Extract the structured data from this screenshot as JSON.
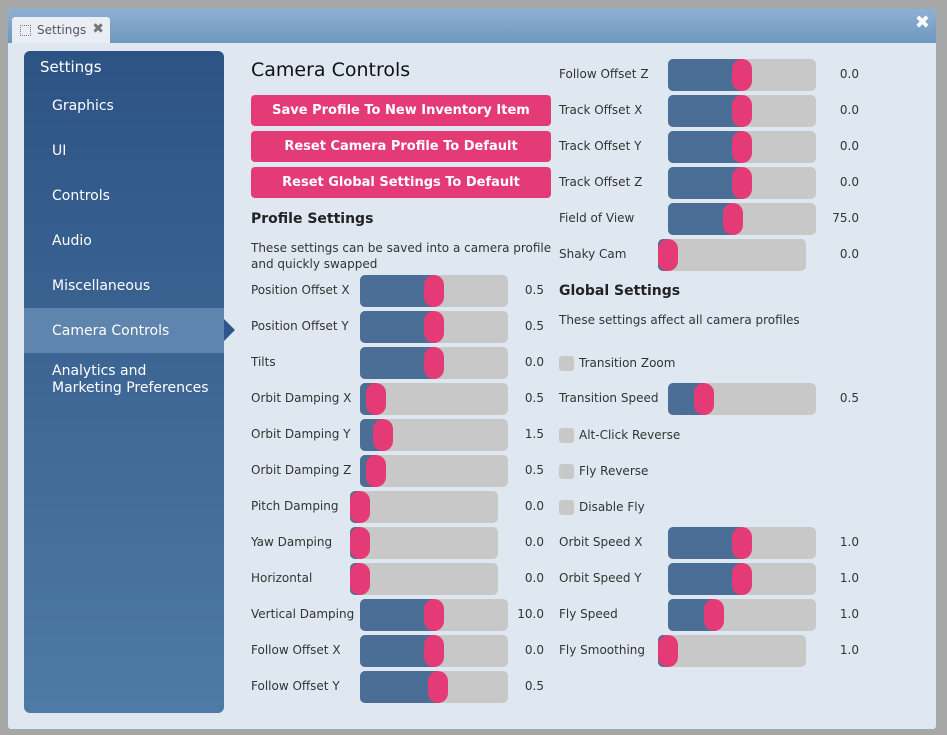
{
  "window": {
    "tab_label": "Settings",
    "tab_icon": "dashed-square-icon",
    "tab_close_glyph": "✖",
    "close_glyph": "✖"
  },
  "sidebar": {
    "title": "Settings",
    "items": [
      {
        "label": "Graphics",
        "active": false
      },
      {
        "label": "UI",
        "active": false
      },
      {
        "label": "Controls",
        "active": false
      },
      {
        "label": "Audio",
        "active": false
      },
      {
        "label": "Miscellaneous",
        "active": false
      },
      {
        "label": "Camera Controls",
        "active": true
      },
      {
        "label": "Analytics and Marketing Preferences",
        "active": false
      }
    ]
  },
  "main": {
    "title": "Camera Controls",
    "buttons": {
      "save_profile": "Save Profile To New Inventory Item",
      "reset_camera": "Reset Camera Profile To Default",
      "reset_global": "Reset Global Settings To Default"
    },
    "profile": {
      "heading": "Profile Settings",
      "description": "These settings can be saved into a camera profile and quickly swapped",
      "sliders": [
        {
          "label": "Position Offset X",
          "value": "0.5",
          "fraction": 0.5
        },
        {
          "label": "Position Offset Y",
          "value": "0.5",
          "fraction": 0.5
        },
        {
          "label": "Tilts",
          "value": "0.0",
          "fraction": 0.5
        },
        {
          "label": "Orbit Damping X",
          "value": "0.5",
          "fraction": 0.05
        },
        {
          "label": "Orbit Damping Y",
          "value": "1.5",
          "fraction": 0.1
        },
        {
          "label": "Orbit Damping Z",
          "value": "0.5",
          "fraction": 0.05
        },
        {
          "label": "Pitch Damping",
          "value": "0.0",
          "fraction": 0.0
        },
        {
          "label": "Yaw Damping",
          "value": "0.0",
          "fraction": 0.0
        },
        {
          "label": "Horizontal",
          "value": "0.0",
          "fraction": 0.0
        },
        {
          "label": "Vertical Damping",
          "value": "10.0",
          "fraction": 0.5
        },
        {
          "label": "Follow Offset X",
          "value": "0.0",
          "fraction": 0.5
        },
        {
          "label": "Follow Offset Y",
          "value": "0.5",
          "fraction": 0.53
        }
      ]
    },
    "profile_right": {
      "sliders": [
        {
          "label": "Follow Offset Z",
          "value": "0.0",
          "fraction": 0.5
        },
        {
          "label": "Track Offset X",
          "value": "0.0",
          "fraction": 0.5
        },
        {
          "label": "Track Offset Y",
          "value": "0.0",
          "fraction": 0.5
        },
        {
          "label": "Track Offset Z",
          "value": "0.0",
          "fraction": 0.5
        },
        {
          "label": "Field of View",
          "value": "75.0",
          "fraction": 0.43
        },
        {
          "label": "Shaky Cam",
          "value": "0.0",
          "fraction": 0.0
        }
      ]
    },
    "global": {
      "heading": "Global Settings",
      "description": "These settings affect all camera profiles",
      "transition_zoom": {
        "label": "Transition Zoom",
        "checked": false
      },
      "transition_speed": {
        "label": "Transition Speed",
        "value": "0.5",
        "fraction": 0.2
      },
      "alt_click_reverse": {
        "label": "Alt-Click Reverse",
        "checked": false
      },
      "fly_reverse": {
        "label": "Fly Reverse",
        "checked": false
      },
      "disable_fly": {
        "label": "Disable Fly",
        "checked": false
      },
      "sliders": [
        {
          "label": "Orbit Speed X",
          "value": "1.0",
          "fraction": 0.5
        },
        {
          "label": "Orbit Speed Y",
          "value": "1.0",
          "fraction": 0.5
        },
        {
          "label": "Fly Speed",
          "value": "1.0",
          "fraction": 0.28
        },
        {
          "label": "Fly Smoothing",
          "value": "1.0",
          "fraction": 0.0
        }
      ]
    }
  },
  "colors": {
    "accent": "#e43a76",
    "slider_fill": "#4a6e96",
    "slider_track": "#c8c8c8",
    "sidebar_top": "#2c5384",
    "sidebar_bottom": "#4e7aa6",
    "sidebar_active": "#5f84ad"
  }
}
